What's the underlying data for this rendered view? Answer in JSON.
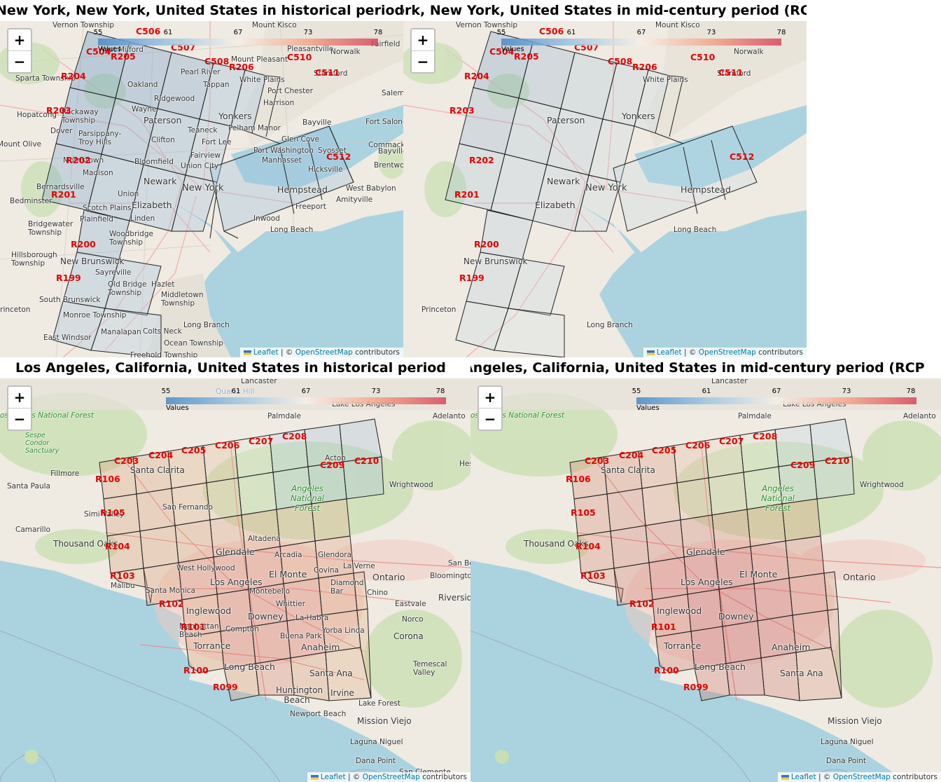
{
  "panels": [
    {
      "title": "New York, New York, United States in historical period",
      "zoom_in": "+",
      "zoom_out": "−",
      "legend": {
        "ticks": [
          "55",
          "61",
          "67",
          "73",
          "78"
        ],
        "caption": "Values"
      },
      "attribution": {
        "leaflet": "Leaflet",
        "sep": " | © ",
        "osm": "OpenStreetMap",
        "tail": " contributors"
      },
      "grid_labels": [
        "C506",
        "C507",
        "C508",
        "C510",
        "C511",
        "C512",
        "C504",
        "R205",
        "R206",
        "R204",
        "R203",
        "R202",
        "R201",
        "R200",
        "R199"
      ],
      "places": [
        "Vernon Township",
        "Mount Kisco",
        "West Milford",
        "Pleasantville",
        "Norwalk",
        "Sparta Township",
        "Mount Pleasant",
        "Oakland",
        "Pearl River",
        "White Plains",
        "Stamford",
        "Tappan",
        "Port Chester",
        "Ridgewood",
        "Harrison",
        "Hopatcong",
        "Rockaway Township",
        "Wayne",
        "Yonkers",
        "Paterson",
        "Bayville",
        "Dover",
        "Teaneck",
        "Pelham Manor",
        "Glen Cove",
        "Parsippany-Troy Hills",
        "Clifton",
        "Fort Lee",
        "Port Washington",
        "Syosset",
        "Commack",
        "Mount Olive",
        "Morristown",
        "Fairview",
        "Manhasset",
        "Madison",
        "Bloomfield",
        "Union City",
        "Hicksville",
        "Newark",
        "Bernardsville",
        "New York",
        "Hempstead",
        "West Babylon",
        "Union",
        "Elizabeth",
        "Amityville",
        "Bedminster",
        "Scotch Plains",
        "Freeport",
        "Plainfield",
        "Linden",
        "Inwood",
        "Bridgewater Township",
        "Woodbridge Township",
        "Long Beach",
        "Hillsborough Township",
        "New Brunswick",
        "Sayreville",
        "Old Bridge Township",
        "Hazlet",
        "Middletown Township",
        "Princeton",
        "South Brunswick",
        "Monroe Township",
        "Long Branch",
        "Manalapan",
        "Colts Neck",
        "East Windsor",
        "Ocean Township",
        "Freehold Township",
        "Fairfield",
        "Salem",
        "Bayville",
        "Fort Salonga",
        "Brentwood"
      ]
    },
    {
      "title": "New York, New York, United States in mid-century period (RCP",
      "zoom_in": "+",
      "zoom_out": "−",
      "legend": {
        "ticks": [
          "55",
          "61",
          "67",
          "73",
          "78"
        ],
        "caption": "Values"
      },
      "attribution": {
        "leaflet": "Leaflet",
        "sep": " | © ",
        "osm": "OpenStreetMap",
        "tail": " contributors"
      },
      "grid_labels": [
        "C506",
        "C507",
        "C508",
        "C510",
        "C511",
        "C512",
        "C504",
        "R205",
        "R206",
        "R204",
        "R203",
        "R202",
        "R201",
        "R200",
        "R199"
      ]
    },
    {
      "title": "Los Angeles, California, United States in historical period",
      "zoom_in": "+",
      "zoom_out": "−",
      "legend": {
        "ticks": [
          "55",
          "61",
          "67",
          "73",
          "78"
        ],
        "caption": "Values"
      },
      "attribution": {
        "leaflet": "Leaflet",
        "sep": " | © ",
        "osm": "OpenStreetMap",
        "tail": " contributors"
      },
      "grid_labels": [
        "C203",
        "C204",
        "C205",
        "C206",
        "C207",
        "C208",
        "C209",
        "C210",
        "R106",
        "R105",
        "R104",
        "R103",
        "R102",
        "R101",
        "R100",
        "R099"
      ],
      "places": [
        "Lancaster",
        "Quartz Hill",
        "Palmdale",
        "Lake Los Angeles",
        "Adelanto",
        "Los Padres National Forest",
        "Sespe Condor Sanctuary",
        "Santa Clarita",
        "Acton",
        "Hesperia",
        "Fillmore",
        "Santa Paula",
        "Wrightwood",
        "Angeles National Forest",
        "Simi Valley",
        "San Fernando",
        "Camarillo",
        "Thousand Oaks",
        "Altadena",
        "Glendale",
        "Arcadia",
        "Glendora",
        "La Verne",
        "West Hollywood",
        "San Bernardino",
        "Los Angeles",
        "El Monte",
        "Covina",
        "Ontario",
        "Bloomington",
        "Malibu",
        "Santa Monica",
        "Montebello",
        "Diamond Bar",
        "Chino",
        "Riverside",
        "Whittier",
        "Eastvale",
        "Inglewood",
        "Downey",
        "La Habra",
        "Norco",
        "Manhattan Beach",
        "Compton",
        "Yorba Linda",
        "Corona",
        "Torrance",
        "Buena Park",
        "Anaheim",
        "Temescal Valley",
        "Long Beach",
        "Santa Ana",
        "Huntington Beach",
        "Irvine",
        "Lake Forest",
        "Newport Beach",
        "Mission Viejo",
        "Laguna Niguel",
        "Dana Point",
        "San Clemente"
      ]
    },
    {
      "title": "Los Angeles, California, United States in mid-century period (RCP",
      "zoom_in": "+",
      "zoom_out": "−",
      "legend": {
        "ticks": [
          "55",
          "61",
          "67",
          "73",
          "78"
        ],
        "caption": "Values"
      },
      "attribution": {
        "leaflet": "Leaflet",
        "sep": " | © ",
        "osm": "OpenStreetMap",
        "tail": " contributors"
      },
      "grid_labels": [
        "C203",
        "C204",
        "C205",
        "C206",
        "C207",
        "C208",
        "C209",
        "C210",
        "R106",
        "R105",
        "R104",
        "R103",
        "R102",
        "R101",
        "R100",
        "R099"
      ]
    }
  ]
}
